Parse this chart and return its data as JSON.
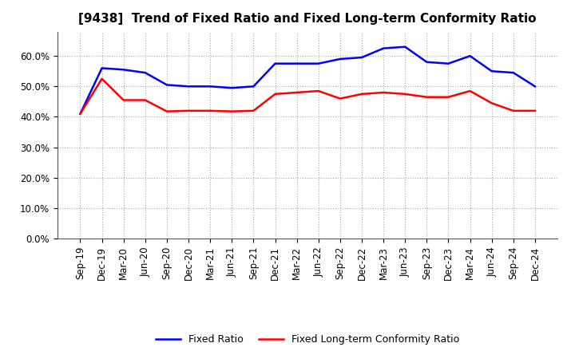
{
  "title": "[9438]  Trend of Fixed Ratio and Fixed Long-term Conformity Ratio",
  "x_labels": [
    "Sep-19",
    "Dec-19",
    "Mar-20",
    "Jun-20",
    "Sep-20",
    "Dec-20",
    "Mar-21",
    "Jun-21",
    "Sep-21",
    "Dec-21",
    "Mar-22",
    "Jun-22",
    "Sep-22",
    "Dec-22",
    "Mar-23",
    "Jun-23",
    "Sep-23",
    "Dec-23",
    "Mar-24",
    "Jun-24",
    "Sep-24",
    "Dec-24"
  ],
  "fixed_ratio": [
    41.0,
    56.0,
    55.5,
    54.5,
    50.5,
    50.0,
    50.0,
    49.5,
    50.0,
    57.5,
    57.5,
    57.5,
    59.0,
    59.5,
    62.5,
    63.0,
    58.0,
    57.5,
    60.0,
    55.0,
    54.5,
    50.0
  ],
  "fixed_lt_ratio": [
    41.0,
    52.5,
    45.5,
    45.5,
    41.8,
    42.0,
    42.0,
    41.8,
    42.0,
    47.5,
    48.0,
    48.5,
    46.0,
    47.5,
    48.0,
    47.5,
    46.5,
    46.5,
    48.5,
    44.5,
    42.0,
    42.0
  ],
  "fixed_ratio_color": "#0000FF",
  "fixed_lt_ratio_color": "#FF0000",
  "background_color": "#FFFFFF",
  "grid_color": "#AAAAAA",
  "ylim": [
    0,
    68
  ],
  "yticks": [
    0,
    10,
    20,
    30,
    40,
    50,
    60
  ],
  "ytick_labels": [
    "0.0%",
    "10.0%",
    "20.0%",
    "30.0%",
    "40.0%",
    "50.0%",
    "60.0%"
  ],
  "legend_fixed_ratio": "Fixed Ratio",
  "legend_fixed_lt_ratio": "Fixed Long-term Conformity Ratio",
  "title_fontsize": 11,
  "tick_fontsize": 8.5
}
